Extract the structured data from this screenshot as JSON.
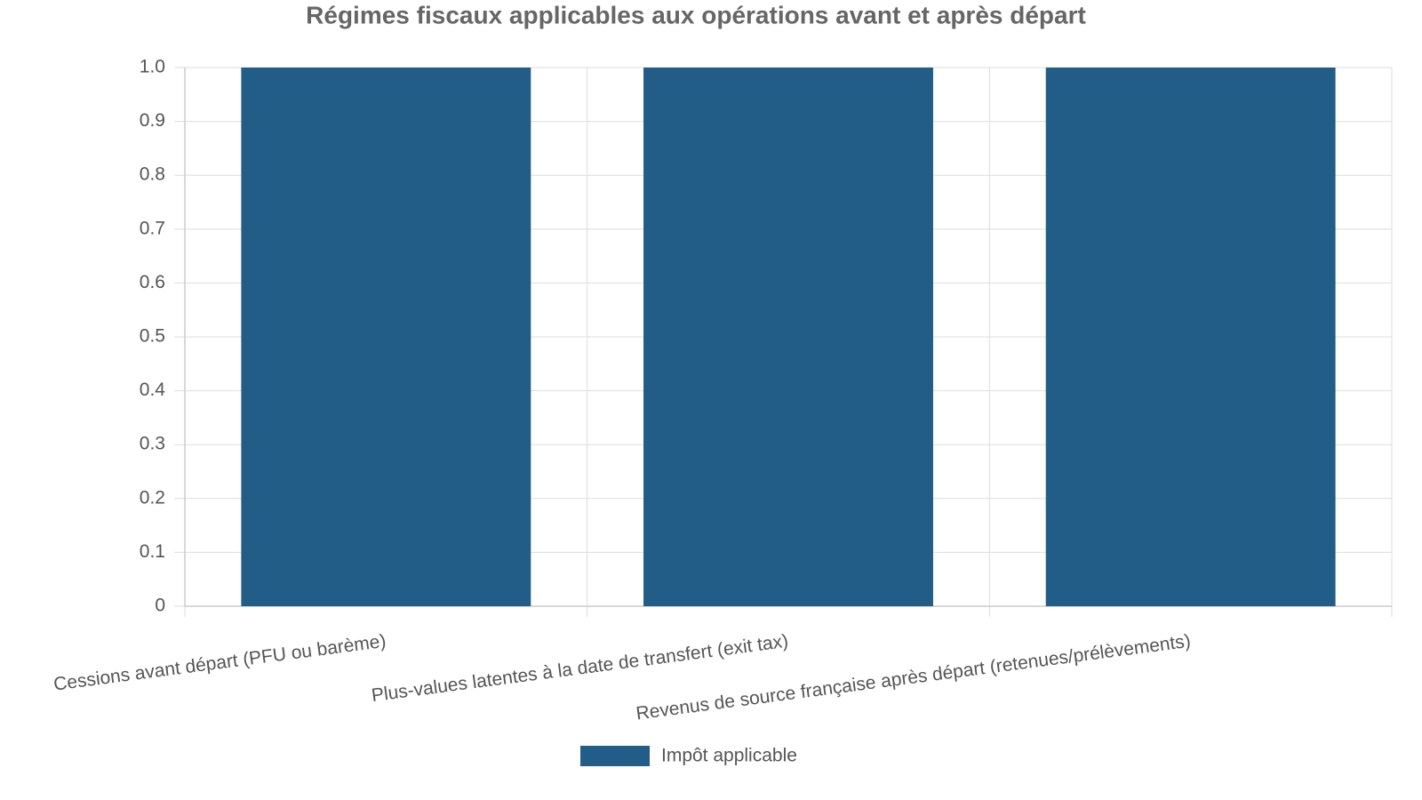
{
  "chart_data": {
    "type": "bar",
    "title": "Régimes fiscaux applicables aux opérations avant et après départ",
    "categories": [
      "Cessions avant départ (PFU ou barème)",
      "Plus-values latentes à la date de transfert (exit tax)",
      "Revenus de source française après départ (retenues/prélèvements)"
    ],
    "series": [
      {
        "name": "Impôt applicable",
        "color": "#215d86",
        "values": [
          1,
          1,
          1
        ]
      }
    ],
    "ylim": [
      0,
      1
    ],
    "yticks": [
      0,
      0.1,
      0.2,
      0.3,
      0.4,
      0.5,
      0.6,
      0.7,
      0.8,
      0.9,
      {
        "value": 1,
        "label": "1.0"
      }
    ],
    "grid": true,
    "legend": "bottom"
  }
}
